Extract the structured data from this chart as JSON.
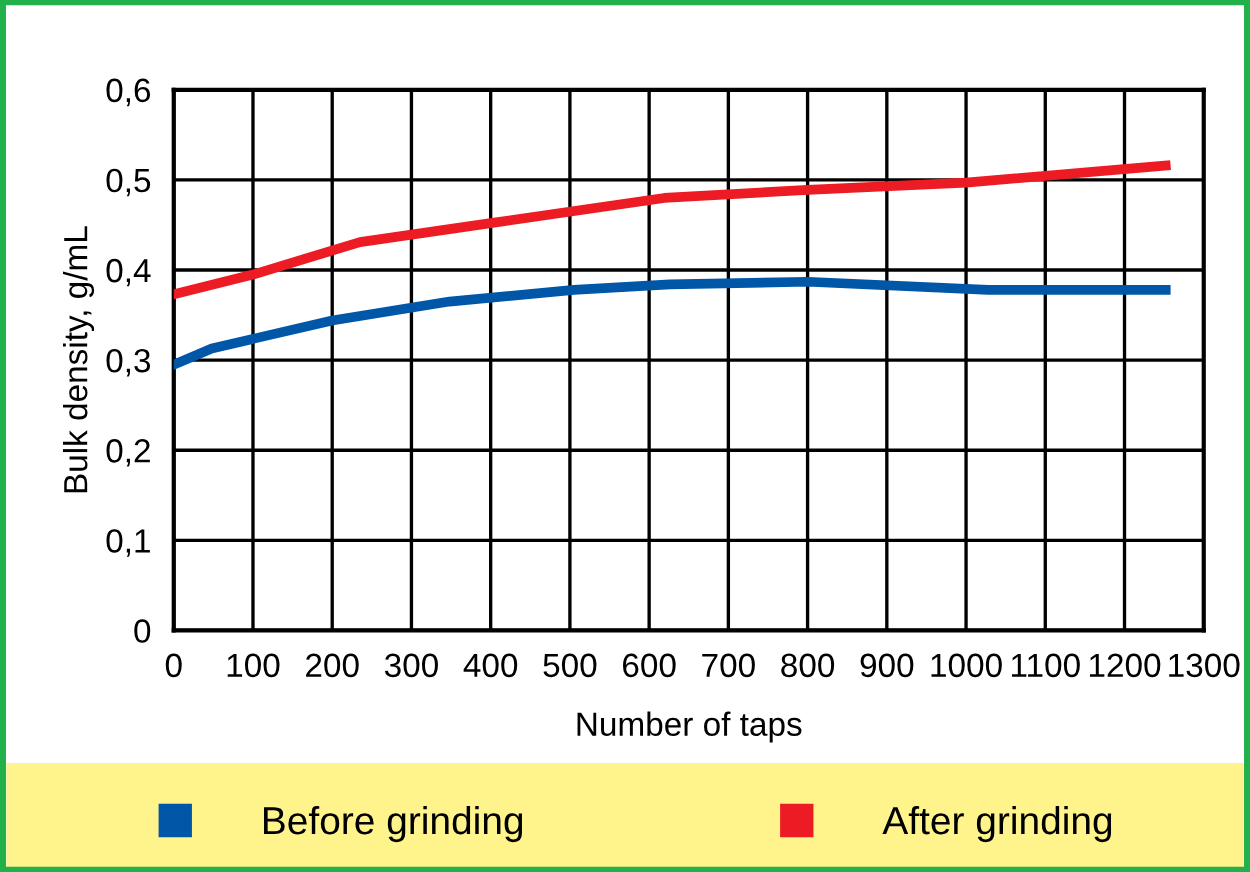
{
  "chart_data": {
    "type": "line",
    "xlabel": "Number of taps",
    "ylabel": "Bulk density, g/mL",
    "xlim": [
      0,
      1300
    ],
    "xticks": [
      0,
      100,
      200,
      300,
      400,
      500,
      600,
      700,
      800,
      900,
      1000,
      1100,
      1200,
      1300
    ],
    "ylim": [
      0,
      0.6
    ],
    "yticks": [
      {
        "value": 0,
        "label": "0"
      },
      {
        "value": 0.1,
        "label": "0,1"
      },
      {
        "value": 0.2,
        "label": "0,2"
      },
      {
        "value": 0.3,
        "label": "0,3"
      },
      {
        "value": 0.4,
        "label": "0,4"
      },
      {
        "value": 0.5,
        "label": "0,5"
      },
      {
        "value": 0.6,
        "label": "0,6"
      }
    ],
    "grid": true,
    "legend": "bottom",
    "marker": "none",
    "line_style": "solid",
    "series": [
      {
        "name": "Before grinding",
        "color": "#0057a8",
        "x": [
          0,
          48,
          200,
          348,
          505,
          626,
          800,
          1028,
          1252
        ],
        "values": [
          0.295,
          0.313,
          0.344,
          0.365,
          0.378,
          0.384,
          0.387,
          0.378,
          0.378
        ]
      },
      {
        "name": "After grinding",
        "color": "#ed1c24",
        "x": [
          0,
          100,
          235,
          400,
          619,
          800,
          1000,
          1252
        ],
        "values": [
          0.373,
          0.395,
          0.431,
          0.452,
          0.48,
          0.489,
          0.497,
          0.516
        ]
      }
    ]
  }
}
